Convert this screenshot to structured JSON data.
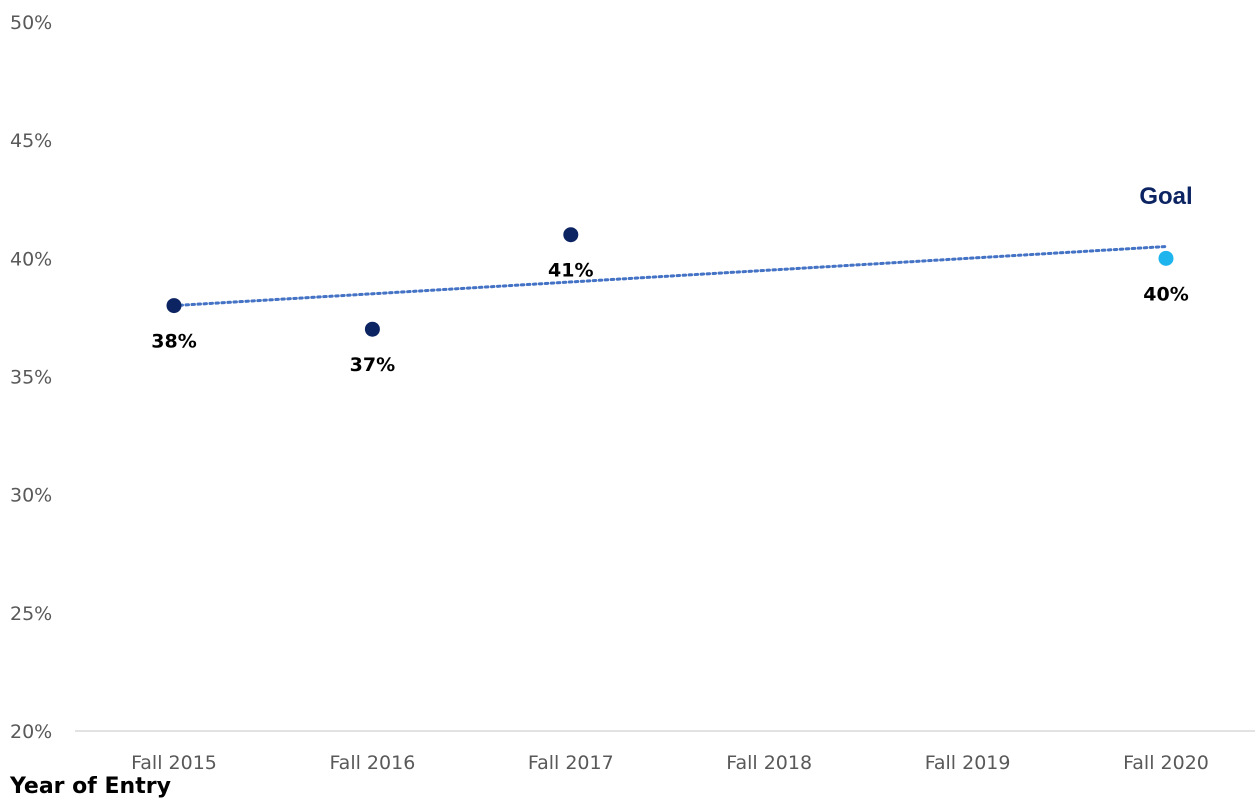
{
  "chart_data": {
    "type": "scatter",
    "title": "",
    "xlabel": "Year of Entry",
    "ylabel": "",
    "categories": [
      "Fall 2015",
      "Fall 2016",
      "Fall 2017",
      "Fall 2018",
      "Fall 2019",
      "Fall 2020"
    ],
    "ylim": [
      20,
      50
    ],
    "y_ticks": [
      "20%",
      "25%",
      "30%",
      "35%",
      "40%",
      "45%",
      "50%"
    ],
    "series": [
      {
        "values": [
          38,
          37,
          41,
          null,
          null,
          null
        ],
        "labels": [
          "38%",
          "37%",
          "41%",
          "",
          "",
          ""
        ],
        "color": "#0c2462"
      },
      {
        "values": [
          null,
          null,
          null,
          null,
          null,
          40
        ],
        "labels": [
          "",
          "",
          "",
          "",
          "",
          "40%"
        ],
        "color": "#1eb4ee"
      }
    ],
    "trendline": {
      "style": "dotted",
      "color": "#4472c4",
      "from": [
        "Fall 2015",
        38
      ],
      "to": [
        "Fall 2020",
        40.5
      ]
    },
    "annotations": [
      {
        "text": "Goal",
        "category": "Fall 2020",
        "color": "#0c2462"
      }
    ],
    "grid": false,
    "legend": "none"
  }
}
